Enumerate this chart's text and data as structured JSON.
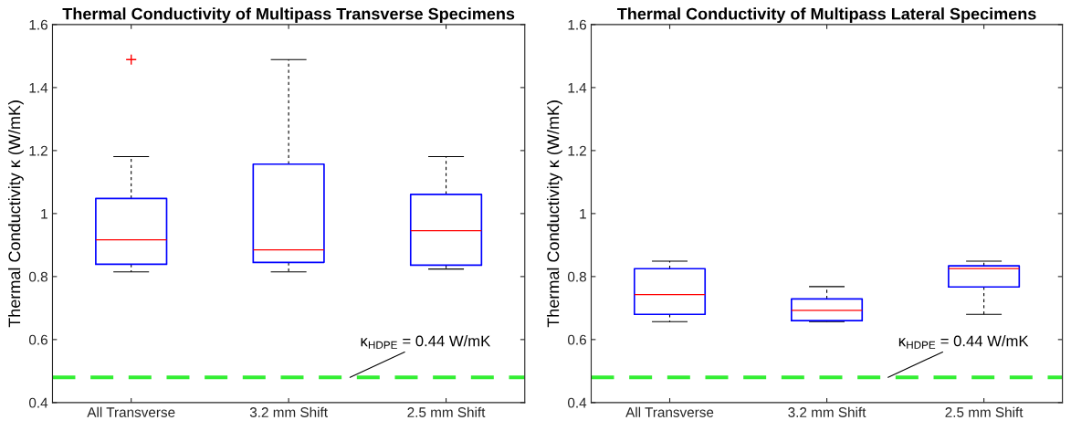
{
  "chart_data": [
    {
      "type": "box",
      "title": "Thermal Conductivity of Multipass Transverse Specimens",
      "ylabel": "Thermal Conductivity κ (W/mK)",
      "categories": [
        "All Transverse",
        "3.2 mm Shift",
        "2.5 mm Shift"
      ],
      "ylim": [
        0.4,
        1.6
      ],
      "yticks": [
        0.4,
        0.6,
        0.8,
        1,
        1.2,
        1.4,
        1.6
      ],
      "grid": false,
      "series": [
        {
          "color": "#0000ff",
          "boxes": [
            {
              "low": 0.815,
              "q1": 0.839,
              "median": 0.917,
              "q3": 1.048,
              "high": 1.181,
              "outliers": [
                1.489
              ]
            },
            {
              "low": 0.815,
              "q1": 0.845,
              "median": 0.885,
              "q3": 1.157,
              "high": 1.489
            },
            {
              "low": 0.824,
              "q1": 0.836,
              "median": 0.946,
              "q3": 1.061,
              "high": 1.181
            }
          ]
        }
      ],
      "ref_lines": [
        {
          "axis": "y",
          "value": 0.48,
          "color": "#33ee33",
          "line_style": "dashed"
        }
      ],
      "annotations": [
        {
          "text": "κ$_{HDPE}$ = 0.44 W/mK",
          "y": 0.48
        }
      ]
    },
    {
      "type": "box",
      "title": "Thermal Conductivity of Multipass Lateral Specimens",
      "ylabel": "Thermal Conductivity κ (W/mK)",
      "categories": [
        "All Transverse",
        "3.2 mm Shift",
        "2.5 mm Shift"
      ],
      "ylim": [
        0.4,
        1.6
      ],
      "yticks": [
        0.4,
        0.6,
        0.8,
        1,
        1.2,
        1.4,
        1.6
      ],
      "grid": false,
      "series": [
        {
          "color": "#0000ff",
          "boxes": [
            {
              "low": 0.657,
              "q1": 0.68,
              "median": 0.743,
              "q3": 0.825,
              "high": 0.849
            },
            {
              "low": 0.657,
              "q1": 0.66,
              "median": 0.693,
              "q3": 0.729,
              "high": 0.768
            },
            {
              "low": 0.68,
              "q1": 0.767,
              "median": 0.825,
              "q3": 0.834,
              "high": 0.849
            }
          ]
        }
      ],
      "ref_lines": [
        {
          "axis": "y",
          "value": 0.48,
          "color": "#33ee33",
          "line_style": "dashed"
        }
      ],
      "annotations": [
        {
          "text": "κ$_{HDPE}$ = 0.44 W/mK",
          "y": 0.48
        }
      ]
    }
  ]
}
